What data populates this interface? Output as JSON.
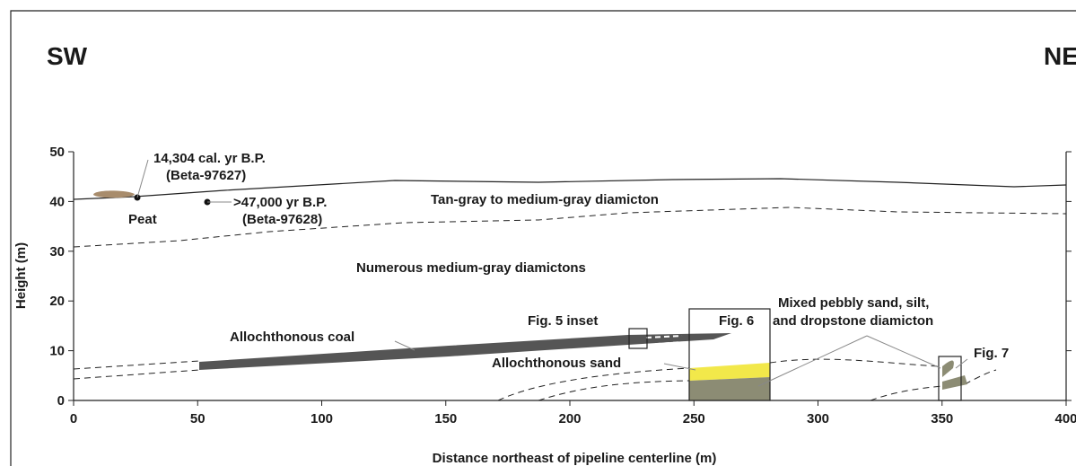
{
  "header": {
    "left": "SW",
    "right": "NE"
  },
  "axes": {
    "x_label": "Distance northeast of pipeline centerline (m)",
    "y_label": "Height (m)",
    "x_ticks": [
      0,
      50,
      100,
      150,
      200,
      250,
      300,
      350,
      400
    ],
    "y_ticks": [
      0,
      10,
      20,
      30,
      40,
      50
    ]
  },
  "labels": {
    "date1": "14,304 cal. yr B.P.",
    "lab1": "(Beta-97627)",
    "peat": "Peat",
    "date2": ">47,000 yr B.P.",
    "lab2": "(Beta-97628)",
    "upper_unit": "Tan-gray to medium-gray diamicton",
    "middle_unit": "Numerous medium-gray diamictons",
    "mixed1": "Mixed pebbly sand, silt,",
    "mixed2": "and dropstone diamicton",
    "fig5": "Fig. 5 inset",
    "fig6": "Fig. 6",
    "fig7": "Fig. 7",
    "coal": "Allochthonous coal",
    "sand": "Allochthonous sand"
  }
}
